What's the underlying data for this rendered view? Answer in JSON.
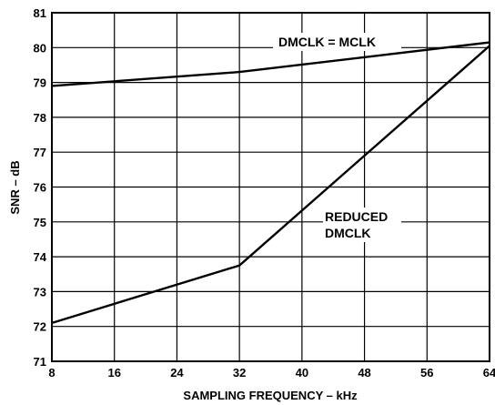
{
  "chart_data": {
    "type": "line",
    "xlabel": "SAMPLING FREQUENCY – kHz",
    "ylabel": "SNR – dB",
    "xlim": [
      8,
      64
    ],
    "ylim": [
      71,
      81
    ],
    "xticks": [
      "8",
      "16",
      "24",
      "32",
      "40",
      "48",
      "56",
      "64"
    ],
    "yticks": [
      "71",
      "72",
      "73",
      "74",
      "75",
      "76",
      "77",
      "78",
      "79",
      "80",
      "81"
    ],
    "grid": true,
    "legend": "none",
    "series": [
      {
        "name": "DMCLK = MCLK",
        "x": [
          8,
          32,
          64
        ],
        "y": [
          78.9,
          79.3,
          80.15
        ]
      },
      {
        "name": "REDUCED DMCLK",
        "x": [
          8,
          32,
          64
        ],
        "y": [
          72.1,
          73.75,
          80.05
        ]
      }
    ],
    "annotations": [
      {
        "text": "DMCLK = MCLK"
      },
      {
        "text": "REDUCED"
      },
      {
        "text": "DMCLK"
      }
    ]
  }
}
